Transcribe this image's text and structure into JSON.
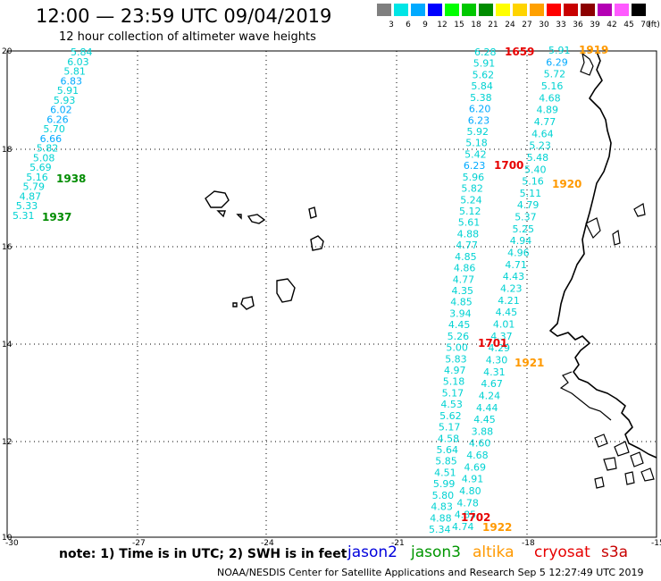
{
  "header": {
    "title": "12:00 — 23:59 UTC 09/04/2019",
    "subtitle": "12 hour collection of altimeter wave heights"
  },
  "legend": {
    "unit": "(ft)",
    "bins": [
      {
        "label": "3",
        "color": "#7f7f7f"
      },
      {
        "label": "6",
        "color": "#00e5e5"
      },
      {
        "label": "9",
        "color": "#00aaff"
      },
      {
        "label": "12",
        "color": "#0000ff"
      },
      {
        "label": "15",
        "color": "#00ff00"
      },
      {
        "label": "18",
        "color": "#00c800"
      },
      {
        "label": "21",
        "color": "#008c00"
      },
      {
        "label": "24",
        "color": "#ffff00"
      },
      {
        "label": "27",
        "color": "#ffd400"
      },
      {
        "label": "30",
        "color": "#ffa000"
      },
      {
        "label": "33",
        "color": "#ff0000"
      },
      {
        "label": "36",
        "color": "#c80000"
      },
      {
        "label": "39",
        "color": "#8c0000"
      },
      {
        "label": "42",
        "color": "#b400b4"
      },
      {
        "label": "45",
        "color": "#ff5aff"
      },
      {
        "label": "70",
        "color": "#000000"
      }
    ]
  },
  "axes": {
    "lon_ticks": [
      "-30",
      "-27",
      "-24",
      "-21",
      "-18",
      "-15"
    ],
    "lat_ticks": [
      "20",
      "18",
      "16",
      "14",
      "12",
      "10"
    ]
  },
  "colors": {
    "low": "#00d2d2",
    "mid": "#00aaff"
  },
  "tracks": [
    {
      "name": "track-west",
      "values": [
        "5.84",
        "6.03",
        "5.81",
        "6.83",
        "5.91",
        "5.93",
        "6.02",
        "6.26",
        "5.70",
        "6.66",
        "5.82",
        "5.08",
        "5.69",
        "5.16",
        "5.79",
        "4.87",
        "5.33",
        "5.31"
      ],
      "highlight": [
        "6.83",
        "6.02",
        "6.26",
        "6.66"
      ]
    },
    {
      "name": "track-center-left",
      "values": [
        "6.28",
        "5.91",
        "5.62",
        "5.84",
        "5.38",
        "6.20",
        "6.23",
        "5.92",
        "5.18",
        "5.42",
        "6.23",
        "5.96",
        "5.82",
        "5.24",
        "5.12",
        "5.61",
        "4.88",
        "4.77",
        "4.85",
        "4.86",
        "4.77",
        "4.35",
        "4.85",
        "3.94",
        "4.45",
        "5.26",
        "5.00",
        "5.83",
        "4.97",
        "5.18",
        "5.17",
        "4.53",
        "5.62",
        "5.17",
        "4.58",
        "5.64",
        "5.85",
        "4.51",
        "5.99",
        "5.80",
        "4.83",
        "4.88",
        "5.34"
      ],
      "highlight": [
        "6.20",
        "6.23"
      ]
    },
    {
      "name": "track-center-right",
      "values": [
        "5.91",
        "6.29",
        "5.72",
        "5.16",
        "4.68",
        "4.89",
        "4.77",
        "4.64",
        "5.23",
        "5.48",
        "5.40",
        "5.16",
        "5.11",
        "4.79",
        "5.37",
        "5.25",
        "4.94",
        "4.96",
        "4.71",
        "4.43",
        "4.23",
        "4.21",
        "4.45",
        "4.01",
        "4.37",
        "4.29",
        "4.30",
        "4.31",
        "4.67",
        "4.24",
        "4.44",
        "4.45",
        "3.88",
        "4.60",
        "4.68",
        "4.69",
        "4.91",
        "4.80",
        "4.78",
        "4.85",
        "4.74"
      ],
      "highlight": [
        "6.29"
      ]
    }
  ],
  "pass_times": [
    {
      "label": "1659",
      "color": "#e60000"
    },
    {
      "label": "1919",
      "color": "#ff9900"
    },
    {
      "label": "1700",
      "color": "#e60000"
    },
    {
      "label": "1920",
      "color": "#ff9900"
    },
    {
      "label": "1938",
      "color": "#008c00"
    },
    {
      "label": "1937",
      "color": "#008c00"
    },
    {
      "label": "1701",
      "color": "#e60000"
    },
    {
      "label": "1921",
      "color": "#ff9900"
    },
    {
      "label": "1702",
      "color": "#e60000"
    },
    {
      "label": "1922",
      "color": "#ff9900"
    }
  ],
  "footer": {
    "note": "note: 1) Time is in UTC; 2) SWH is in feet",
    "satellites": [
      {
        "label": "jason2",
        "color": "#0000dc"
      },
      {
        "label": "jason3",
        "color": "#009600"
      },
      {
        "label": "altika",
        "color": "#ff9900"
      },
      {
        "label": "cryosat",
        "color": "#e60000"
      },
      {
        "label": "s3a",
        "color": "#c80000"
      }
    ],
    "credit": "NOAA/NESDIS Center for Satellite Applications and Research   Sep  5 12:27:49 UTC 2019"
  }
}
